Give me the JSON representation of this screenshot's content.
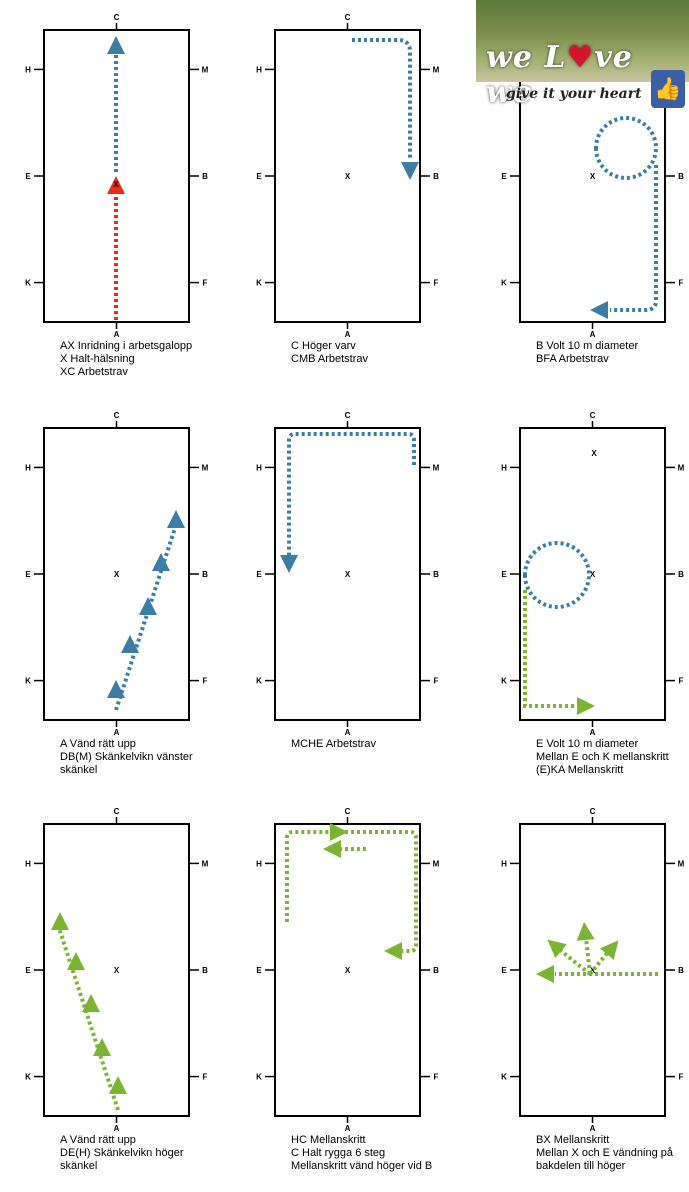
{
  "logo": {
    "text_a": "we L",
    "heart": "♥",
    "text_b": "ve we",
    "tagline": "give it your heart",
    "thumb_icon": "thumbs-up-icon"
  },
  "arena_letters": {
    "top": "C",
    "bottom": "A",
    "left_top": "H",
    "left_mid": "E",
    "left_bottom": "K",
    "right_top": "M",
    "right_mid": "B",
    "right_bottom": "F",
    "center": "X"
  },
  "colors": {
    "blue": "#3a7ea6",
    "red": "#ee2a1a",
    "green": "#7ab432"
  },
  "panels": [
    {
      "caption": [
        "AX Inridning i arbetsgalopp",
        "X Halt-hälsning",
        "XC Arbetstrav"
      ]
    },
    {
      "caption": [
        "C Höger varv",
        "CMB Arbetstrav"
      ]
    },
    {
      "caption": [
        "B Volt 10 m diameter",
        "BFA Arbetstrav"
      ]
    },
    {
      "caption": [
        "A Vänd rätt upp",
        "DB(M) Skänkelvikn vänster",
        "skänkel"
      ]
    },
    {
      "caption": [
        "MCHE Arbetstrav"
      ]
    },
    {
      "caption": [
        "E Volt 10 m diameter",
        "Mellan E och K mellanskritt",
        "(E)KA Mellanskritt"
      ]
    },
    {
      "caption": [
        "A Vänd rätt upp",
        "DE(H) Skänkelvikn höger",
        "skänkel"
      ]
    },
    {
      "caption": [
        "HC  Mellanskritt",
        "C Halt rygga 6 steg",
        "Mellanskritt vänd höger vid B"
      ]
    },
    {
      "caption": [
        "BX Mellanskritt",
        "Mellan X och E vändning på",
        "bakdelen till höger"
      ]
    }
  ]
}
